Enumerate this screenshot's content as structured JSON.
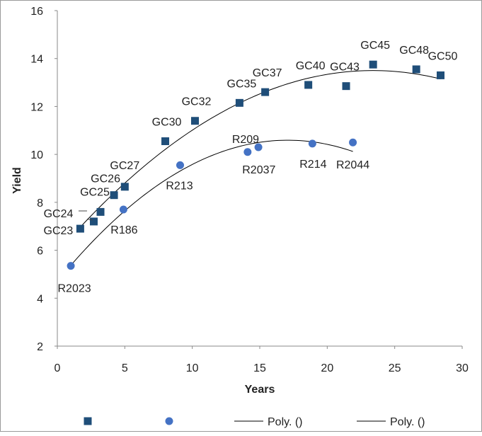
{
  "chart_data": {
    "type": "scatter",
    "xlabel": "Years",
    "ylabel": "Yield",
    "xlim": [
      0,
      30
    ],
    "ylim": [
      2,
      16
    ],
    "xticks": [
      "0",
      "5",
      "10",
      "15",
      "20",
      "25",
      "30"
    ],
    "yticks": [
      "2",
      "4",
      "6",
      "8",
      "10",
      "12",
      "14",
      "16"
    ],
    "grid": false,
    "legend_position": "bottom",
    "series": [
      {
        "marker": "square",
        "color": "#1f4e79",
        "points": [
          {
            "label": "GC23",
            "x": 1.7,
            "y": 6.9
          },
          {
            "label": "GC24",
            "x": 2.7,
            "y": 7.2
          },
          {
            "label": "GC25",
            "x": 3.2,
            "y": 7.6
          },
          {
            "label": "GC26",
            "x": 4.2,
            "y": 8.3
          },
          {
            "label": "GC27",
            "x": 5.0,
            "y": 8.65
          },
          {
            "label": "GC30",
            "x": 8.0,
            "y": 10.55
          },
          {
            "label": "GC32",
            "x": 10.2,
            "y": 11.4
          },
          {
            "label": "GC35",
            "x": 13.5,
            "y": 12.15
          },
          {
            "label": "GC37",
            "x": 15.4,
            "y": 12.6
          },
          {
            "label": "GC40",
            "x": 18.6,
            "y": 12.9
          },
          {
            "label": "GC43",
            "x": 21.4,
            "y": 12.85
          },
          {
            "label": "GC45",
            "x": 23.4,
            "y": 13.75
          },
          {
            "label": "GC48",
            "x": 26.6,
            "y": 13.55
          },
          {
            "label": "GC50",
            "x": 28.4,
            "y": 13.3
          }
        ]
      },
      {
        "marker": "circle",
        "color": "#4472c4",
        "points": [
          {
            "label": "R2023",
            "x": 1.0,
            "y": 5.35
          },
          {
            "label": "R186",
            "x": 4.9,
            "y": 7.7
          },
          {
            "label": "R213",
            "x": 9.1,
            "y": 9.55
          },
          {
            "label": "R2037",
            "x": 14.1,
            "y": 10.1
          },
          {
            "label": "R209",
            "x": 14.9,
            "y": 10.3
          },
          {
            "label": "R214",
            "x": 18.9,
            "y": 10.45
          },
          {
            "label": "R2044",
            "x": 21.9,
            "y": 10.5
          }
        ]
      }
    ],
    "trendlines": [
      {
        "type": "polynomial",
        "color": "#000000",
        "x_range": [
          1.7,
          28.4
        ],
        "coefficients": [
          5.9,
          0.65,
          -0.0139
        ]
      },
      {
        "type": "polynomial",
        "color": "#000000",
        "x_range": [
          1.0,
          21.9
        ],
        "coefficients": [
          4.7,
          0.69,
          -0.0202
        ]
      }
    ],
    "legend": [
      {
        "marker": "square",
        "color": "#1f4e79",
        "text": ""
      },
      {
        "marker": "circle",
        "color": "#4472c4",
        "text": ""
      },
      {
        "marker": "line",
        "color": "#000000",
        "text": "Poly. ()"
      },
      {
        "marker": "line",
        "color": "#000000",
        "text": "Poly. ()"
      }
    ]
  }
}
